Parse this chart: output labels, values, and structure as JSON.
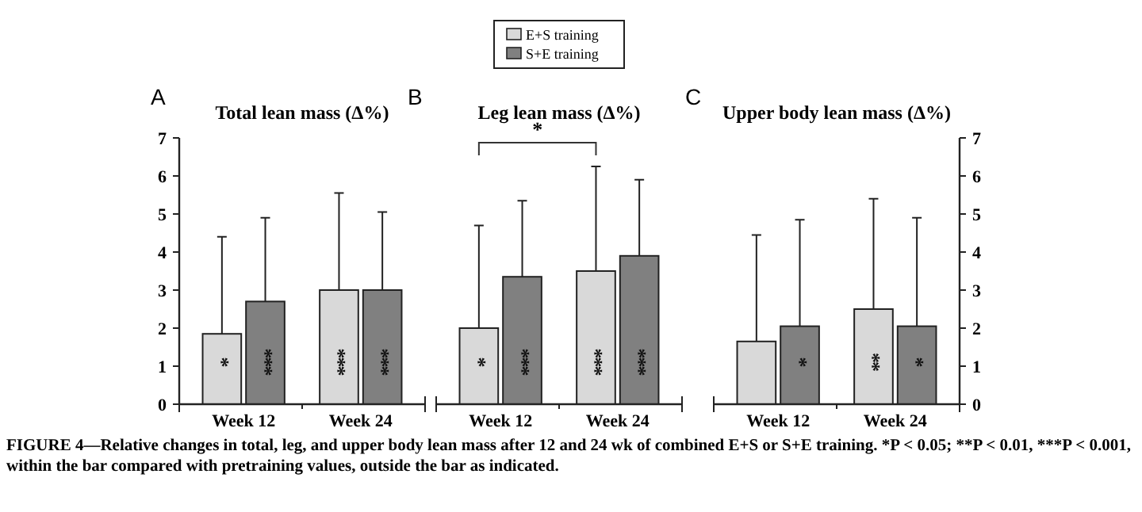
{
  "chart_data": [
    {
      "type": "bar",
      "title": "Total lean mass (Δ%)",
      "annotations": [
        "A",
        "FIGURE 4—Relative changes in total, leg, and upper body lean mass after 12 and 24 wk of combined E+S or S+E training. *P < 0.05; **P < 0.01, ***P < 0.001, within the bar compared with pretraining values, outside the bar as indicated."
      ],
      "categories": [
        "Week 12",
        "Week 24"
      ],
      "series": [
        {
          "color": "#d9d9d9",
          "values": [
            1.85,
            3.0
          ],
          "errors": [
            [
              1.85,
              4.4
            ],
            [
              3.0,
              5.55
            ]
          ],
          "value_labels": [
            "*",
            "***"
          ]
        },
        {
          "color": "#808080",
          "values": [
            2.7,
            3.0
          ],
          "errors": [
            [
              2.7,
              4.9
            ],
            [
              3.0,
              5.05
            ]
          ],
          "value_labels": [
            "***",
            "***"
          ]
        }
      ],
      "ylim": [
        0,
        7
      ],
      "yticks": [
        0,
        1,
        2,
        3,
        4,
        5,
        6,
        7
      ],
      "legend": false
    },
    {
      "type": "bar",
      "title": "Leg lean mass (Δ%)",
      "annotations": [
        "B",
        "*"
      ],
      "categories": [
        "Week 12",
        "Week 24"
      ],
      "series": [
        {
          "name": "E+S training",
          "color": "#d9d9d9",
          "values": [
            2.0,
            3.5
          ],
          "errors": [
            [
              2.0,
              4.7
            ],
            [
              3.5,
              6.25
            ]
          ],
          "value_labels": [
            "*",
            "***"
          ]
        },
        {
          "name": "S+E training",
          "color": "#808080",
          "values": [
            3.35,
            3.9
          ],
          "errors": [
            [
              3.35,
              5.35
            ],
            [
              3.9,
              5.9
            ]
          ],
          "value_labels": [
            "***",
            "***"
          ]
        }
      ],
      "ylim": [
        0,
        7
      ],
      "tick_labels": false,
      "legend": "top"
    },
    {
      "type": "bar",
      "title": "Upper body lean mass (Δ%)",
      "annotations": [
        "C"
      ],
      "categories": [
        "Week 12",
        "Week 24"
      ],
      "series": [
        {
          "color": "#d9d9d9",
          "values": [
            1.65,
            2.5
          ],
          "errors": [
            [
              1.65,
              4.45
            ],
            [
              2.5,
              5.4
            ]
          ],
          "value_labels": [
            null,
            "**"
          ]
        },
        {
          "color": "#808080",
          "values": [
            2.05,
            2.05
          ],
          "errors": [
            [
              2.05,
              4.85
            ],
            [
              2.05,
              4.9
            ]
          ],
          "value_labels": [
            "*",
            "*"
          ]
        }
      ],
      "ylim": [
        0,
        7
      ],
      "yticks": [
        0,
        1,
        2,
        3,
        4,
        5,
        6,
        7
      ],
      "legend": false
    }
  ]
}
